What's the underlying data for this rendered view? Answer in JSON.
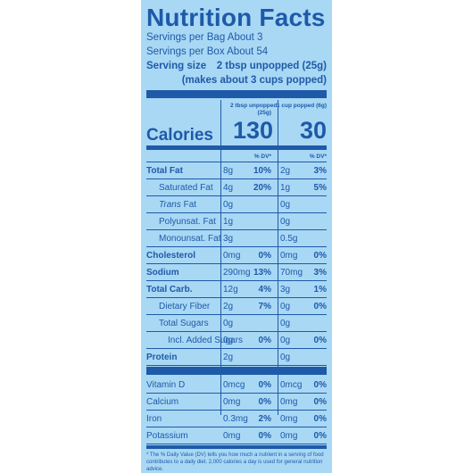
{
  "title": "Nutrition Facts",
  "servings_bag": "Servings per Bag About 3",
  "servings_box": "Servings per Box About 54",
  "serving_size_label": "Serving size",
  "serving_size_value": "2 tbsp unpopped (25g)",
  "serving_size_note": "(makes about 3 cups popped)",
  "col1_header": "2 tbsp unpopped",
  "col1_header2": "(25g)",
  "col2_header": "1 cup popped (6g)",
  "calories_label": "Calories",
  "calories_col1": "130",
  "calories_col2": "30",
  "dv_label": "% DV*",
  "nutrients": [
    {
      "name": "Total Fat",
      "amt1": "8g",
      "dv1": "10%",
      "amt2": "2g",
      "dv2": "3%"
    },
    {
      "name": "Saturated Fat",
      "amt1": "4g",
      "dv1": "20%",
      "amt2": "1g",
      "dv2": "5%"
    },
    {
      "name": "Trans Fat",
      "amt1": "0g",
      "dv1": "",
      "amt2": "0g",
      "dv2": ""
    },
    {
      "name": "Polyunsat. Fat",
      "amt1": "1g",
      "dv1": "",
      "amt2": "0g",
      "dv2": ""
    },
    {
      "name": "Monounsat. Fat",
      "amt1": "3g",
      "dv1": "",
      "amt2": "0.5g",
      "dv2": ""
    },
    {
      "name": "Cholesterol",
      "amt1": "0mg",
      "dv1": "0%",
      "amt2": "0mg",
      "dv2": "0%"
    },
    {
      "name": "Sodium",
      "amt1": "290mg",
      "dv1": "13%",
      "amt2": "70mg",
      "dv2": "3%"
    },
    {
      "name": "Total Carb.",
      "amt1": "12g",
      "dv1": "4%",
      "amt2": "3g",
      "dv2": "1%"
    },
    {
      "name": "Dietary Fiber",
      "amt1": "2g",
      "dv1": "7%",
      "amt2": "0g",
      "dv2": "0%"
    },
    {
      "name": "Total Sugars",
      "amt1": "0g",
      "dv1": "",
      "amt2": "0g",
      "dv2": ""
    },
    {
      "name": "Incl. Added Sugars",
      "amt1": "0g",
      "dv1": "0%",
      "amt2": "0g",
      "dv2": "0%"
    },
    {
      "name": "Protein",
      "amt1": "2g",
      "dv1": "",
      "amt2": "0g",
      "dv2": ""
    }
  ],
  "vitamins": [
    {
      "name": "Vitamin D",
      "amt1": "0mcg",
      "dv1": "0%",
      "amt2": "0mcg",
      "dv2": "0%"
    },
    {
      "name": "Calcium",
      "amt1": "0mg",
      "dv1": "0%",
      "amt2": "0mg",
      "dv2": "0%"
    },
    {
      "name": "Iron",
      "amt1": "0.3mg",
      "dv1": "2%",
      "amt2": "0mg",
      "dv2": "0%"
    },
    {
      "name": "Potassium",
      "amt1": "0mg",
      "dv1": "0%",
      "amt2": "0mg",
      "dv2": "0%"
    }
  ],
  "footnote": "* The % Daily Value (DV) tells you how much a nutrient in a serving of food contributes to a daily diet. 2,000 calories a day is used for general nutrition advice.",
  "colors": {
    "label_bg": "#a9d8f5",
    "ink": "#1e5aa8"
  }
}
